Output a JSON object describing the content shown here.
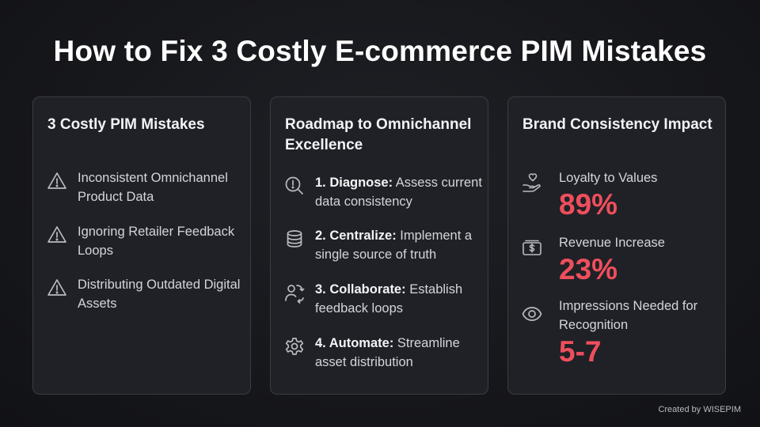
{
  "title": "How to Fix 3 Costly E-commerce PIM Mistakes",
  "colors": {
    "background": "#17181c",
    "card": "#202126",
    "accent": "#ef4e5c"
  },
  "mistakes": {
    "title": "3 Costly PIM Mistakes",
    "items": [
      {
        "icon": "warning-icon",
        "text": "Inconsistent Omnichannel Product Data"
      },
      {
        "icon": "warning-icon",
        "text": "Ignoring Retailer Feedback Loops"
      },
      {
        "icon": "warning-icon",
        "text": "Distributing Outdated Digital Assets"
      }
    ]
  },
  "roadmap": {
    "title": "Roadmap to Omnichannel Excellence",
    "steps": [
      {
        "icon": "search-alert-icon",
        "label": "1. Diagnose:",
        "text": " Assess current data consistency"
      },
      {
        "icon": "database-icon",
        "label": "2. Centralize:",
        "text": " Implement a single source of truth"
      },
      {
        "icon": "users-sync-icon",
        "label": "3. Collaborate:",
        "text": " Establish feedback loops"
      },
      {
        "icon": "gear-icon",
        "label": "4. Automate:",
        "text": " Streamline asset distribution"
      }
    ]
  },
  "impact": {
    "title": "Brand Consistency Impact",
    "stats": [
      {
        "icon": "heart-hand-icon",
        "label": "Loyalty to Values",
        "value": "89%"
      },
      {
        "icon": "banknote-icon",
        "label": "Revenue Increase",
        "value": "23%"
      },
      {
        "icon": "eye-icon",
        "label": "Impressions Needed for Recognition",
        "value": "5-7"
      }
    ]
  },
  "footer": "Created by WISEPIM"
}
